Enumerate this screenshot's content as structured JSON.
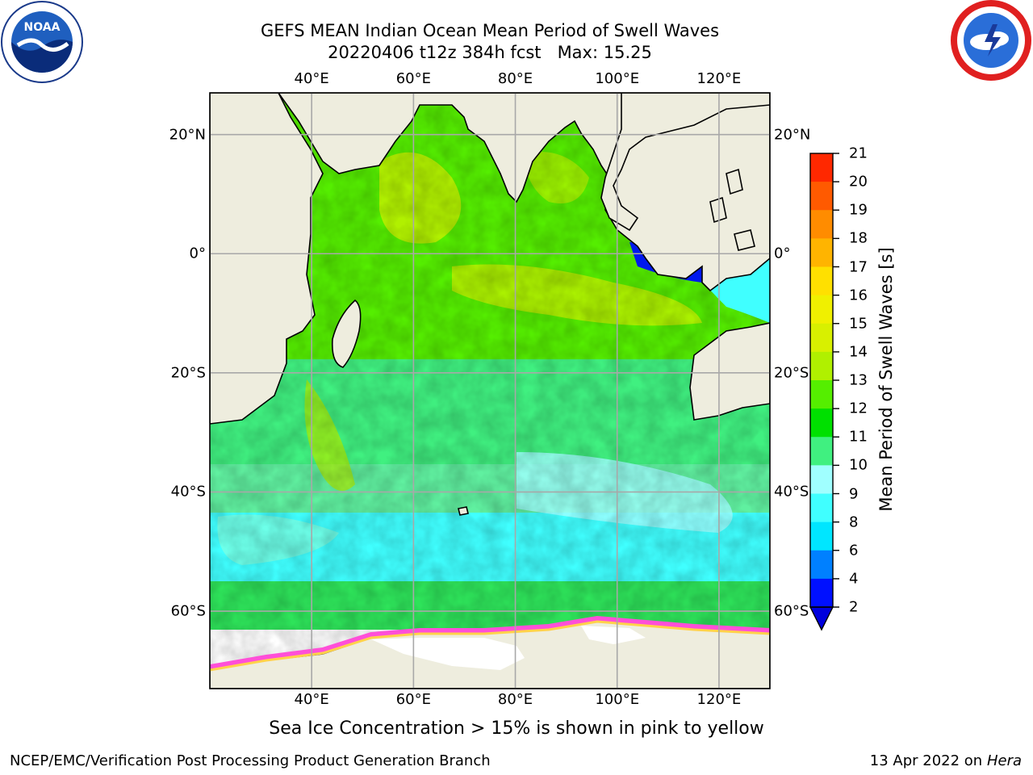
{
  "title_line1": "GEFS MEAN Indian Ocean Mean Period of Swell Waves",
  "title_line2": "20220406 t12z 384h fcst   Max: 15.25",
  "map": {
    "lon_labels": [
      "40°E",
      "60°E",
      "80°E",
      "100°E",
      "120°E"
    ],
    "lat_labels": [
      "20°N",
      "0°",
      "20°S",
      "40°S",
      "60°S"
    ],
    "extent": {
      "lon_min": 20,
      "lon_max": 130,
      "lat_min": -73,
      "lat_max": 27
    },
    "gridlines": true,
    "land_color": "#eeedde",
    "sea_ice_colors": [
      "#ff4fd8",
      "#ffb0c8",
      "#ffd24a",
      "#ffffff"
    ]
  },
  "colorbar": {
    "title": "Mean Period of Swell Waves [s]",
    "ticks": [
      "2",
      "4",
      "6",
      "8",
      "9",
      "10",
      "11",
      "12",
      "13",
      "14",
      "15",
      "16",
      "17",
      "18",
      "19",
      "20",
      "21"
    ],
    "colors": [
      "#0010ff",
      "#0080ff",
      "#00e6ff",
      "#40ffff",
      "#a0ffff",
      "#40f080",
      "#00e000",
      "#55ee00",
      "#b0f000",
      "#d8f000",
      "#f0f000",
      "#ffe000",
      "#ffb400",
      "#ff8c00",
      "#ff5a00",
      "#ff2800",
      "#ff0000"
    ],
    "extend": "min",
    "extend_color": "#0000dd"
  },
  "caption": "Sea Ice Concentration > 15% is shown in pink to yellow",
  "footer_left": "NCEP/EMC/Verification Post Processing Product Generation Branch",
  "footer_right_prefix": "13 Apr 2022 on ",
  "footer_right_host": "Hera",
  "logos": [
    "noaa-logo",
    "nws-logo"
  ]
}
